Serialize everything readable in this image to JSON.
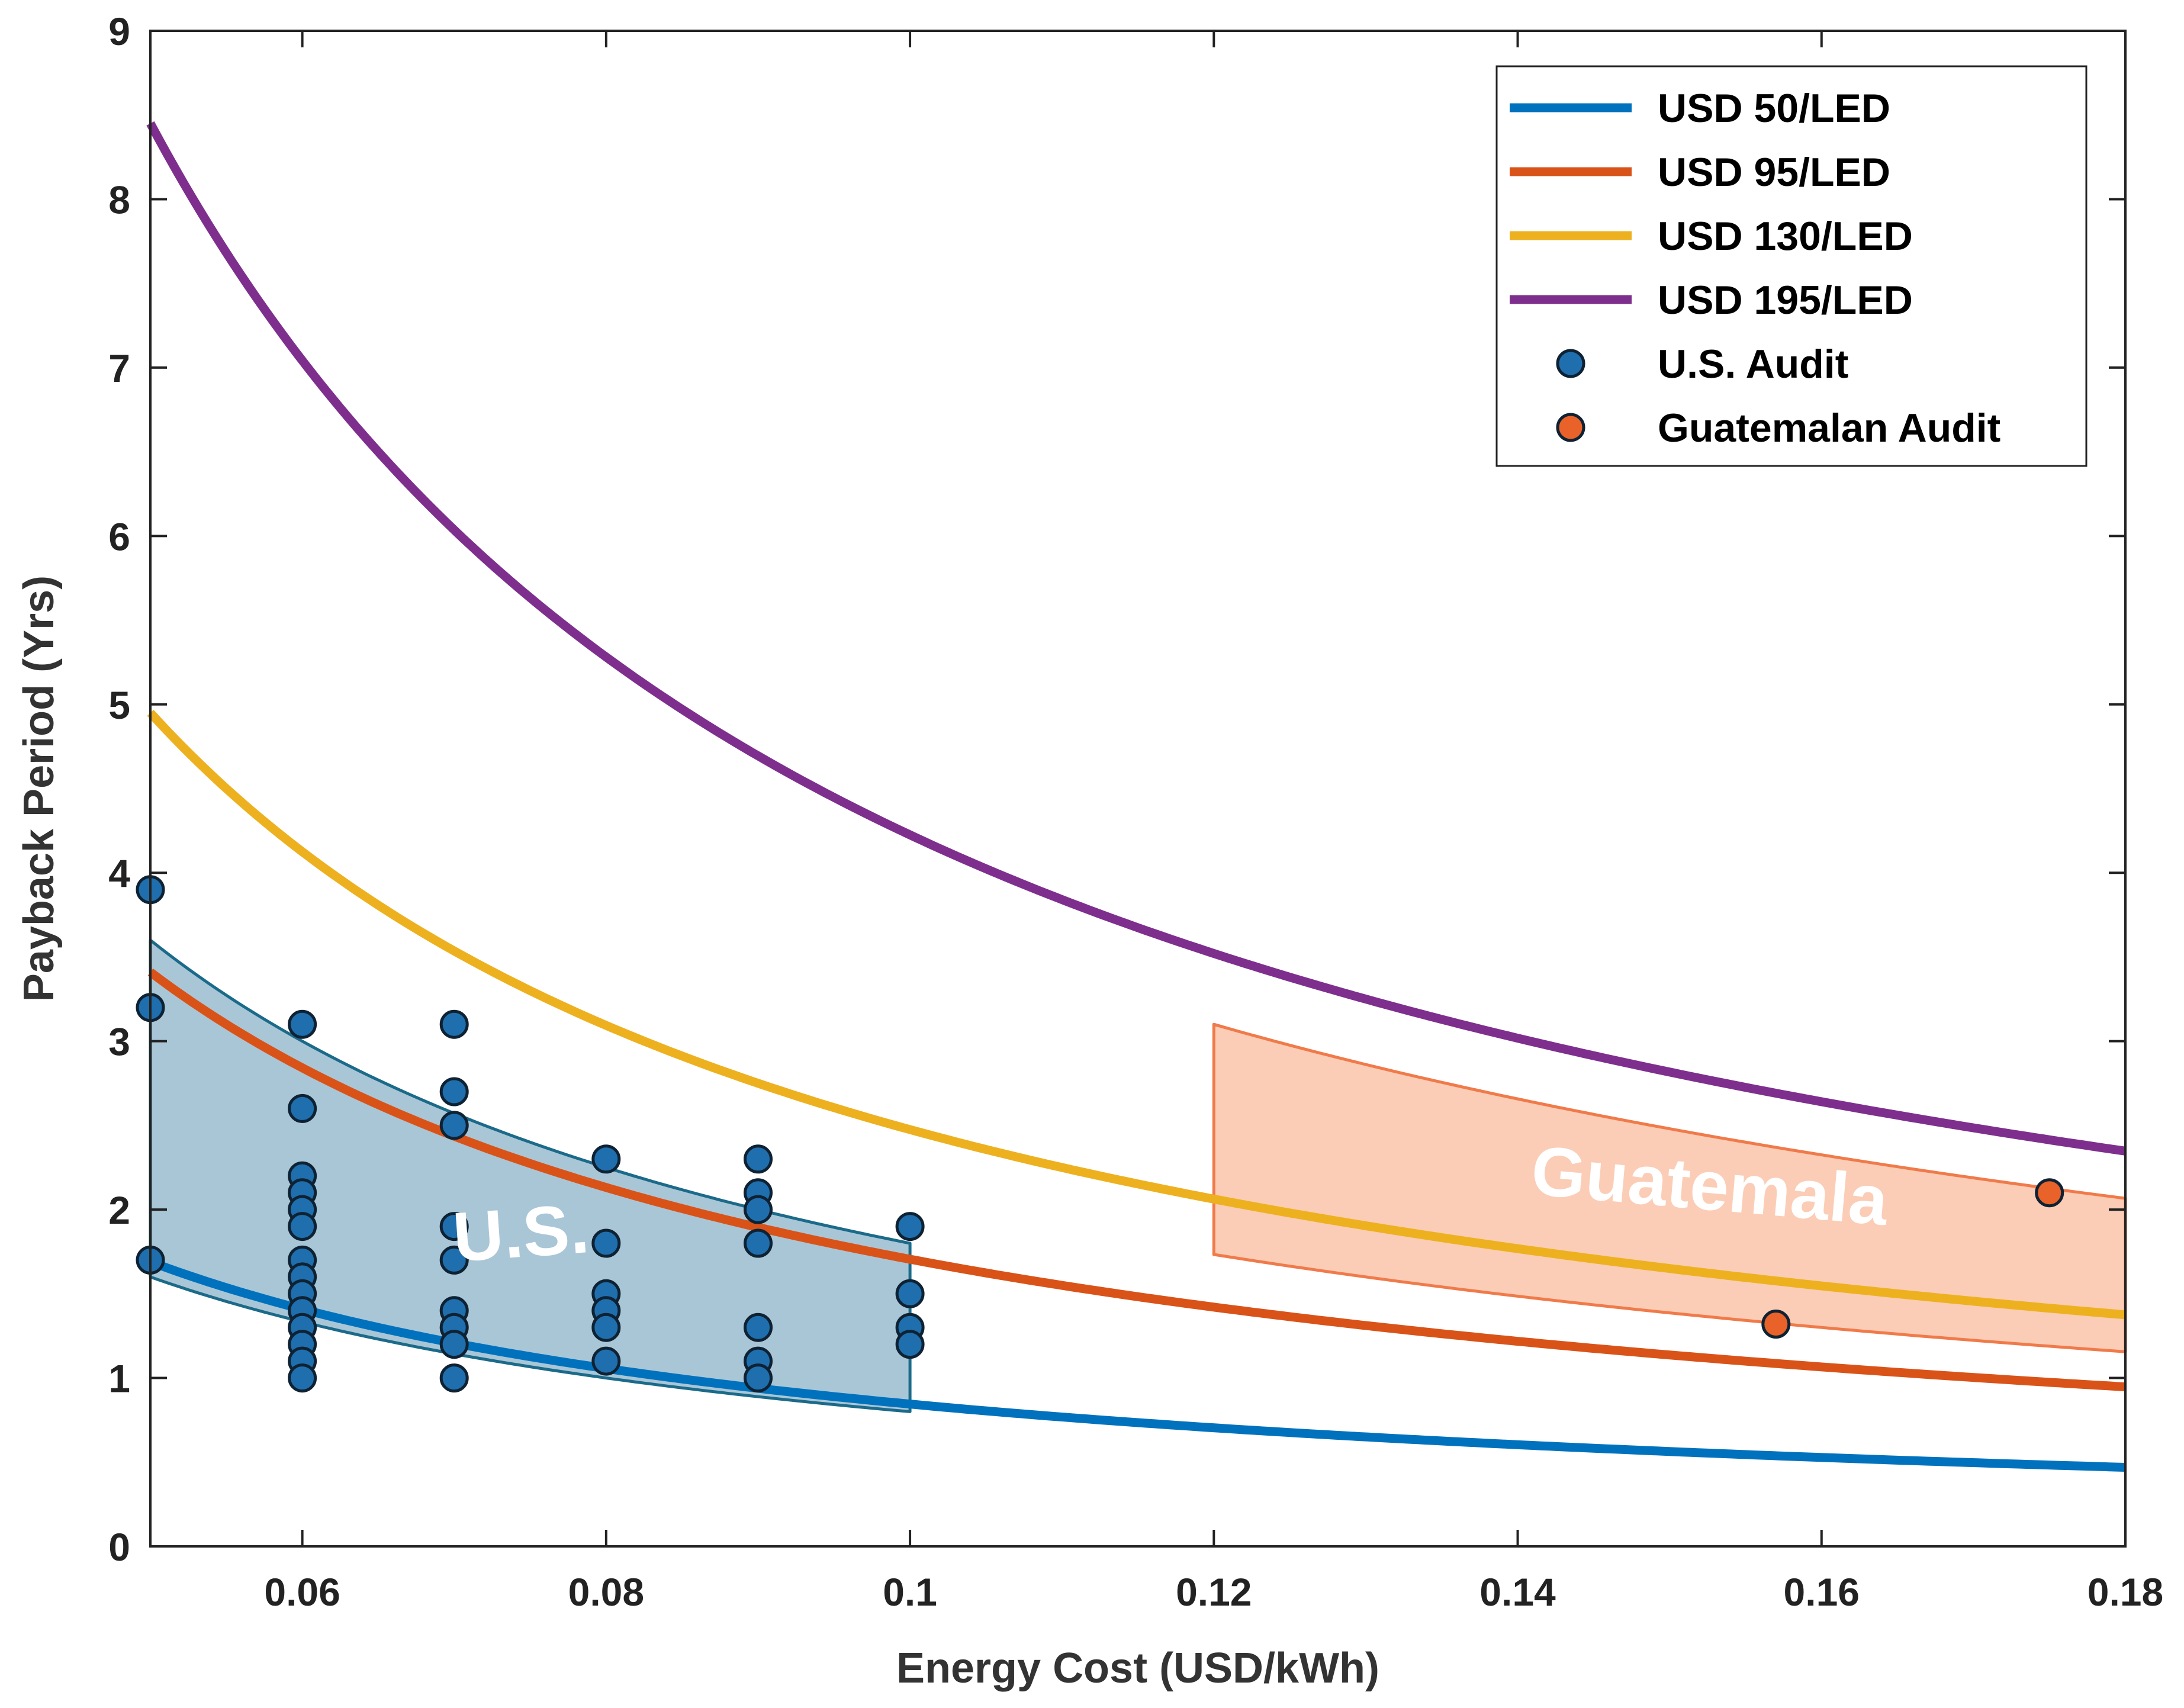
{
  "chart_data": {
    "type": "line",
    "title": "",
    "xlabel": "Energy Cost (USD/kWh)",
    "ylabel": "Payback Period (Yrs)",
    "xlim": [
      0.05,
      0.18
    ],
    "ylim": [
      0,
      9
    ],
    "xticks": [
      0.06,
      0.08,
      0.1,
      0.12,
      0.14,
      0.16,
      0.18
    ],
    "xtick_labels": [
      "0.06",
      "0.08",
      "0.1",
      "0.12",
      "0.14",
      "0.16",
      "0.18"
    ],
    "yticks": [
      0,
      1,
      2,
      3,
      4,
      5,
      6,
      7,
      8,
      9
    ],
    "ytick_labels": [
      "0",
      "1",
      "2",
      "3",
      "4",
      "5",
      "6",
      "7",
      "8",
      "9"
    ],
    "legend_position": "top-right",
    "series": [
      {
        "name": "USD 50/LED",
        "kind": "curve",
        "coefficient": 0.0845,
        "color": "#0072BD"
      },
      {
        "name": "USD 95/LED",
        "kind": "curve",
        "coefficient": 0.1705,
        "color": "#D95319"
      },
      {
        "name": "USD 130/LED",
        "kind": "curve",
        "coefficient": 0.2475,
        "color": "#EDB120"
      },
      {
        "name": "USD 195/LED",
        "kind": "curve",
        "coefficient": 0.4225,
        "color": "#7E2F8E"
      },
      {
        "name": "U.S. Audit",
        "kind": "scatter",
        "color": "#1F6FAE",
        "points": [
          [
            0.05,
            3.9
          ],
          [
            0.05,
            3.2
          ],
          [
            0.05,
            1.7
          ],
          [
            0.06,
            3.1
          ],
          [
            0.06,
            2.6
          ],
          [
            0.06,
            2.2
          ],
          [
            0.06,
            2.1
          ],
          [
            0.06,
            2.0
          ],
          [
            0.06,
            1.9
          ],
          [
            0.06,
            1.7
          ],
          [
            0.06,
            1.6
          ],
          [
            0.06,
            1.5
          ],
          [
            0.06,
            1.4
          ],
          [
            0.06,
            1.3
          ],
          [
            0.06,
            1.2
          ],
          [
            0.06,
            1.1
          ],
          [
            0.06,
            1.0
          ],
          [
            0.07,
            3.1
          ],
          [
            0.07,
            2.7
          ],
          [
            0.07,
            2.5
          ],
          [
            0.07,
            1.9
          ],
          [
            0.07,
            1.7
          ],
          [
            0.07,
            1.4
          ],
          [
            0.07,
            1.3
          ],
          [
            0.07,
            1.2
          ],
          [
            0.07,
            1.0
          ],
          [
            0.08,
            2.3
          ],
          [
            0.08,
            1.8
          ],
          [
            0.08,
            1.5
          ],
          [
            0.08,
            1.4
          ],
          [
            0.08,
            1.3
          ],
          [
            0.08,
            1.1
          ],
          [
            0.09,
            2.3
          ],
          [
            0.09,
            2.1
          ],
          [
            0.09,
            2.0
          ],
          [
            0.09,
            1.8
          ],
          [
            0.09,
            1.3
          ],
          [
            0.09,
            1.1
          ],
          [
            0.09,
            1.0
          ],
          [
            0.1,
            1.9
          ],
          [
            0.1,
            1.5
          ],
          [
            0.1,
            1.3
          ],
          [
            0.1,
            1.2
          ]
        ]
      },
      {
        "name": "Guatemalan Audit",
        "kind": "scatter",
        "color": "#E8622A",
        "points": [
          [
            0.157,
            1.32
          ],
          [
            0.175,
            2.1
          ]
        ]
      }
    ],
    "regions": [
      {
        "label": "U.S.",
        "x_range": [
          0.05,
          0.1
        ],
        "upper_coefficient": 0.18,
        "lower_coefficient": 0.08,
        "fill": "#A9C6D7",
        "stroke": "#1B6A8A"
      },
      {
        "label": "Guatemala",
        "x_range": [
          0.12,
          0.18
        ],
        "upper_coefficient": 0.372,
        "lower_coefficient": 0.208,
        "fill": "#FBCDB6",
        "stroke": "#F07A4A"
      }
    ]
  }
}
